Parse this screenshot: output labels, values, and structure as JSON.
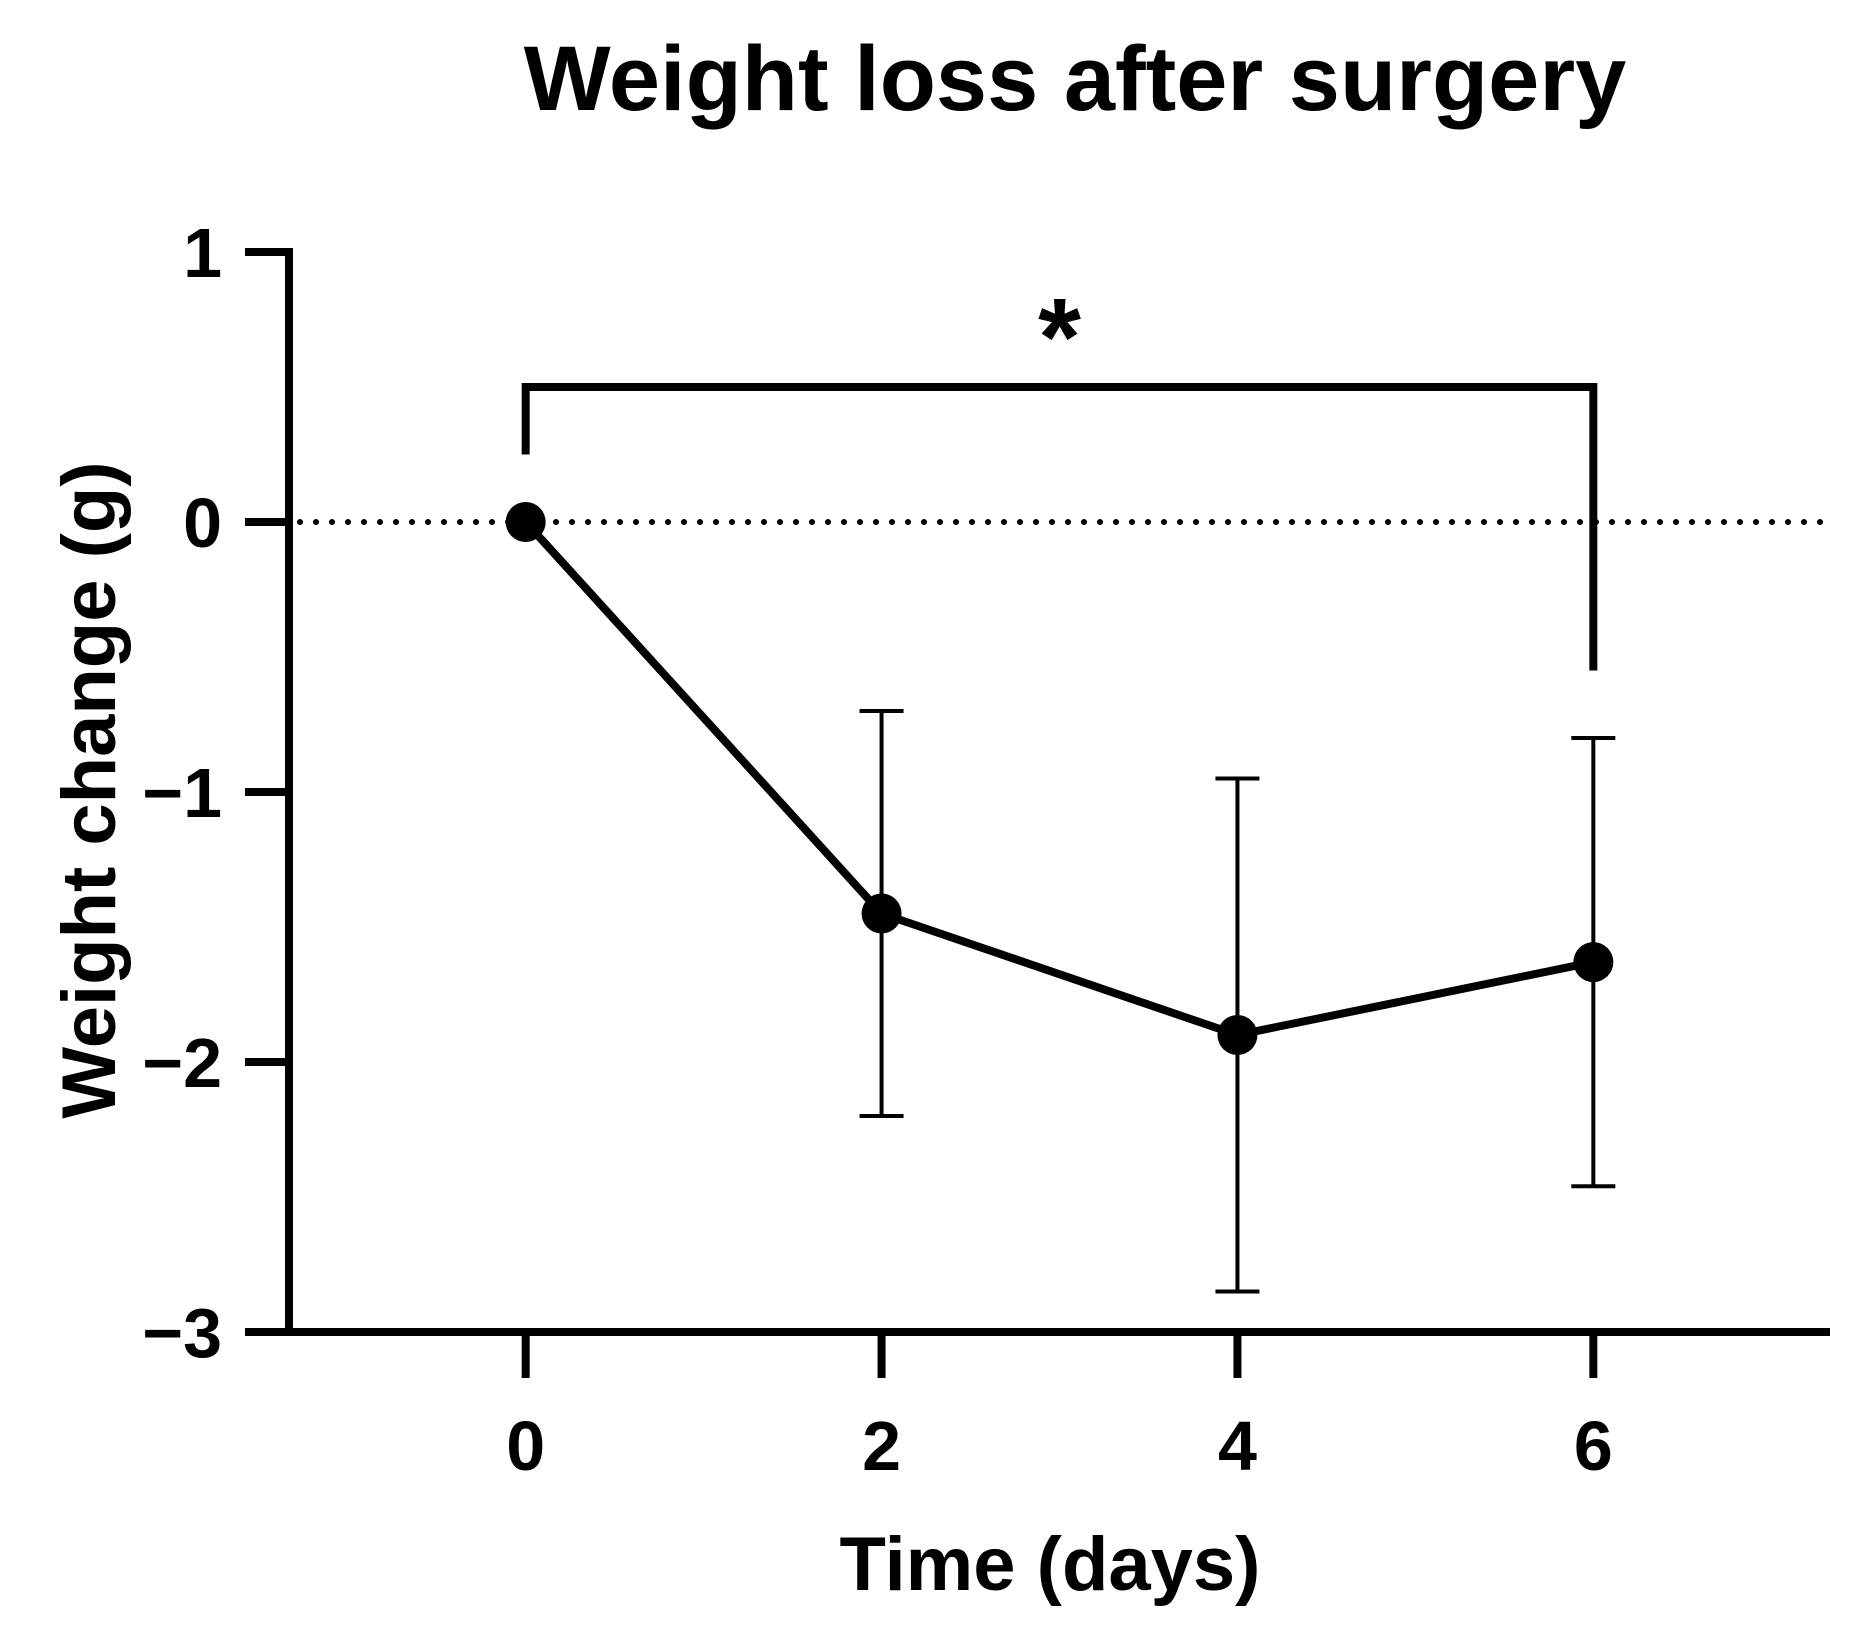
{
  "chart_data": {
    "type": "line",
    "title": "Weight loss after surgery",
    "xlabel": "Time (days)",
    "ylabel": "Weight change (g)",
    "xlim": [
      -1.33,
      7.33
    ],
    "ylim": [
      -3,
      1
    ],
    "xticks": [
      0,
      2,
      4,
      6
    ],
    "xtick_labels": [
      "0",
      "2",
      "4",
      "6"
    ],
    "yticks": [
      1,
      0,
      -1,
      -2,
      -3
    ],
    "ytick_labels": [
      "1",
      "0",
      "−1",
      "−2",
      "−3"
    ],
    "grid": false,
    "reference_line": {
      "y": 0,
      "style": "dotted"
    },
    "series": [
      {
        "name": "Weight change",
        "x": [
          0,
          2,
          4,
          6
        ],
        "y": [
          0,
          -1.45,
          -1.9,
          -1.63
        ],
        "error_upper": [
          0,
          -0.7,
          -0.95,
          -0.8
        ],
        "error_lower": [
          0,
          -2.2,
          -2.85,
          -2.46
        ]
      }
    ],
    "significance": {
      "from_x": 0,
      "to_x": 6,
      "bar_y": 0.5,
      "label": "*"
    }
  },
  "colors": {
    "ink": "#000000",
    "background": "#ffffff"
  }
}
